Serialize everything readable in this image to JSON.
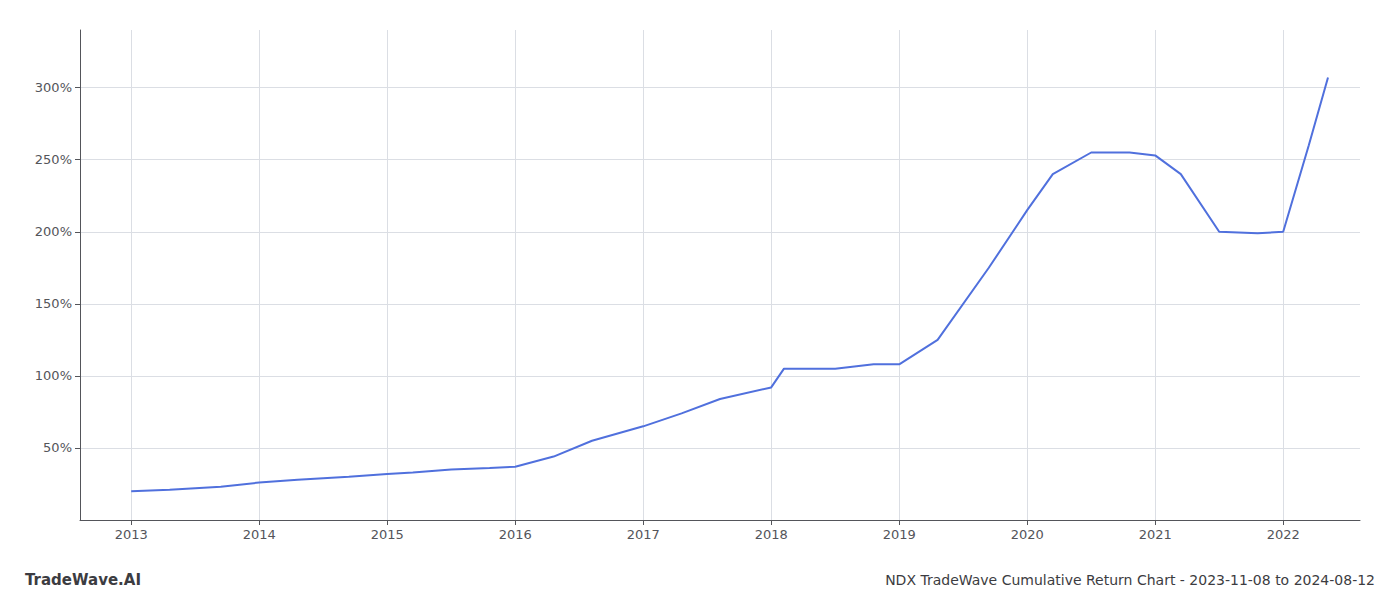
{
  "chart_data": {
    "type": "line",
    "title": "NDX TradeWave Cumulative Return Chart - 2023-11-08 to 2024-08-12",
    "annotations": [
      "TradeWave.AI"
    ],
    "x": [
      2013.0,
      2013.3,
      2013.7,
      2014.0,
      2014.3,
      2014.7,
      2015.0,
      2015.2,
      2015.5,
      2015.8,
      2016.0,
      2016.3,
      2016.6,
      2017.0,
      2017.3,
      2017.6,
      2018.0,
      2018.1,
      2018.5,
      2018.8,
      2019.0,
      2019.3,
      2019.7,
      2020.0,
      2020.2,
      2020.5,
      2020.8,
      2021.0,
      2021.2,
      2021.5,
      2021.8,
      2022.0,
      2022.2,
      2022.35
    ],
    "values": [
      20,
      21,
      23,
      26,
      28,
      30,
      32,
      33,
      35,
      36,
      37,
      44,
      55,
      65,
      74,
      84,
      92,
      105,
      105,
      108,
      108,
      125,
      175,
      215,
      240,
      255,
      255,
      253,
      240,
      200,
      199,
      200,
      260,
      307
    ],
    "xlim": [
      2012.6,
      2022.6
    ],
    "xticks": [
      2013,
      2014,
      2015,
      2016,
      2017,
      2018,
      2019,
      2020,
      2021,
      2022
    ],
    "ylim": [
      0,
      340
    ],
    "yticks": [
      {
        "value": 50,
        "label": "50%"
      },
      {
        "value": 100,
        "label": "100%"
      },
      {
        "value": 150,
        "label": "150%"
      },
      {
        "value": 200,
        "label": "200%"
      },
      {
        "value": 250,
        "label": "250%"
      },
      {
        "value": 300,
        "label": "300%"
      }
    ],
    "grid": true
  }
}
